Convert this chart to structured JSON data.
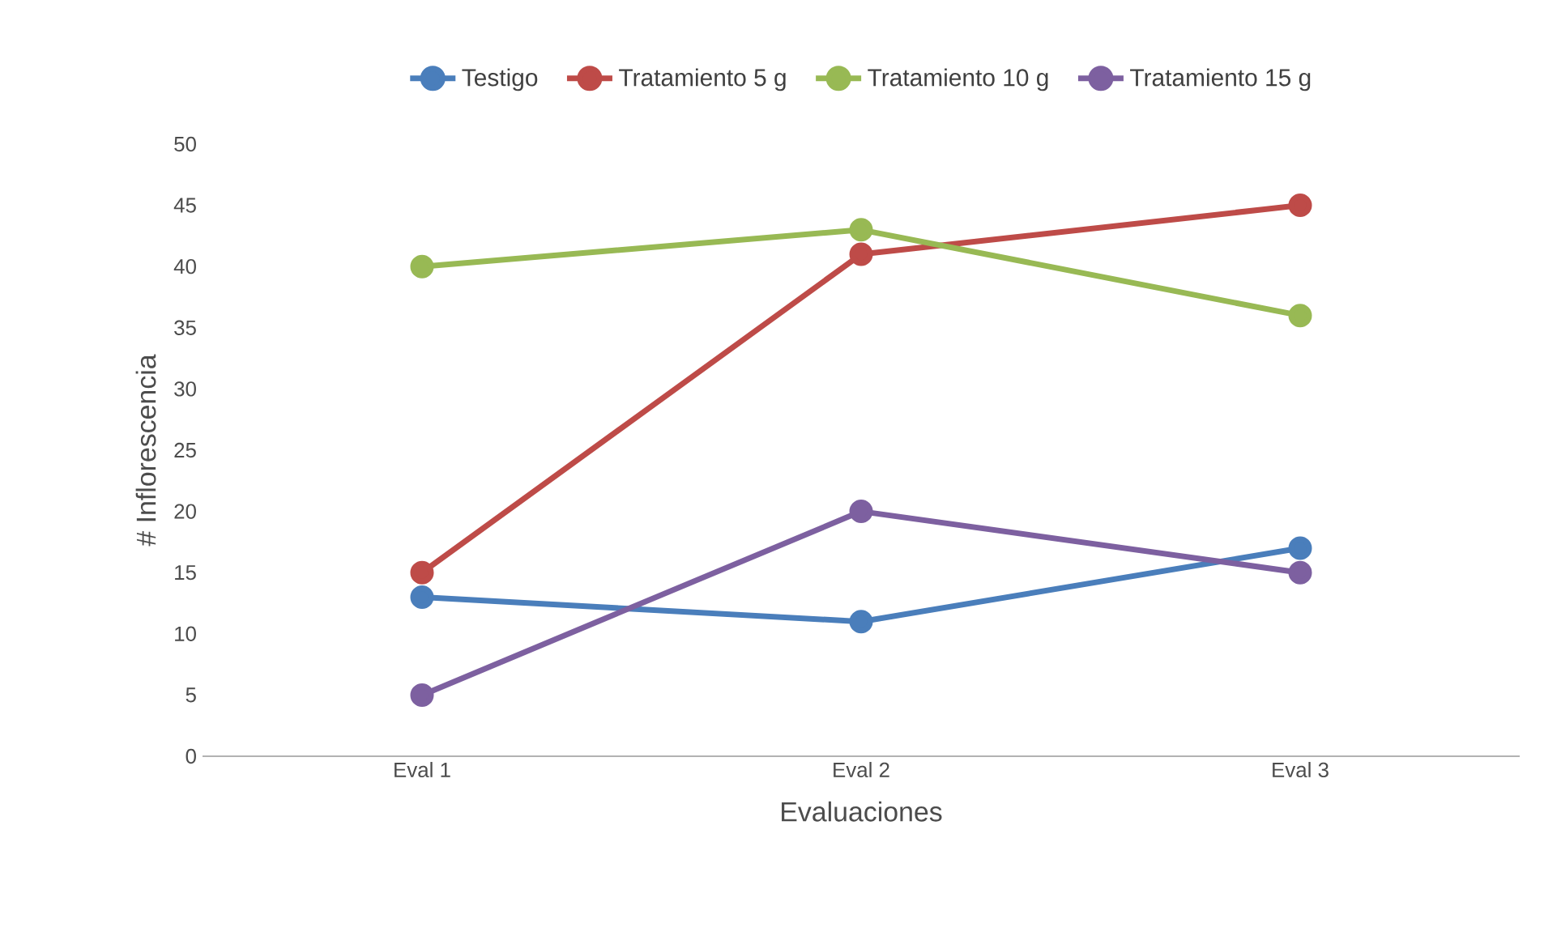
{
  "chart_data": {
    "type": "line",
    "xlabel": "Evaluaciones",
    "ylabel": "# Inflorescencia",
    "categories": [
      "Eval 1",
      "Eval 2",
      "Eval 3"
    ],
    "series": [
      {
        "name": "Testigo",
        "color": "#4a7ebb",
        "values": [
          13,
          11,
          17
        ]
      },
      {
        "name": "Tratamiento 5 g",
        "color": "#be4b48",
        "values": [
          15,
          41,
          45
        ]
      },
      {
        "name": "Tratamiento 10 g",
        "color": "#98b954",
        "values": [
          40,
          43,
          36
        ]
      },
      {
        "name": "Tratamiento 15 g",
        "color": "#7d60a0",
        "values": [
          5,
          20,
          15
        ]
      }
    ],
    "ylim": [
      0,
      50
    ],
    "yticks": [
      0,
      5,
      10,
      15,
      20,
      25,
      30,
      35,
      40,
      45,
      50
    ],
    "grid": false,
    "legend": "top",
    "marker": "circle",
    "line_style": "solid"
  }
}
